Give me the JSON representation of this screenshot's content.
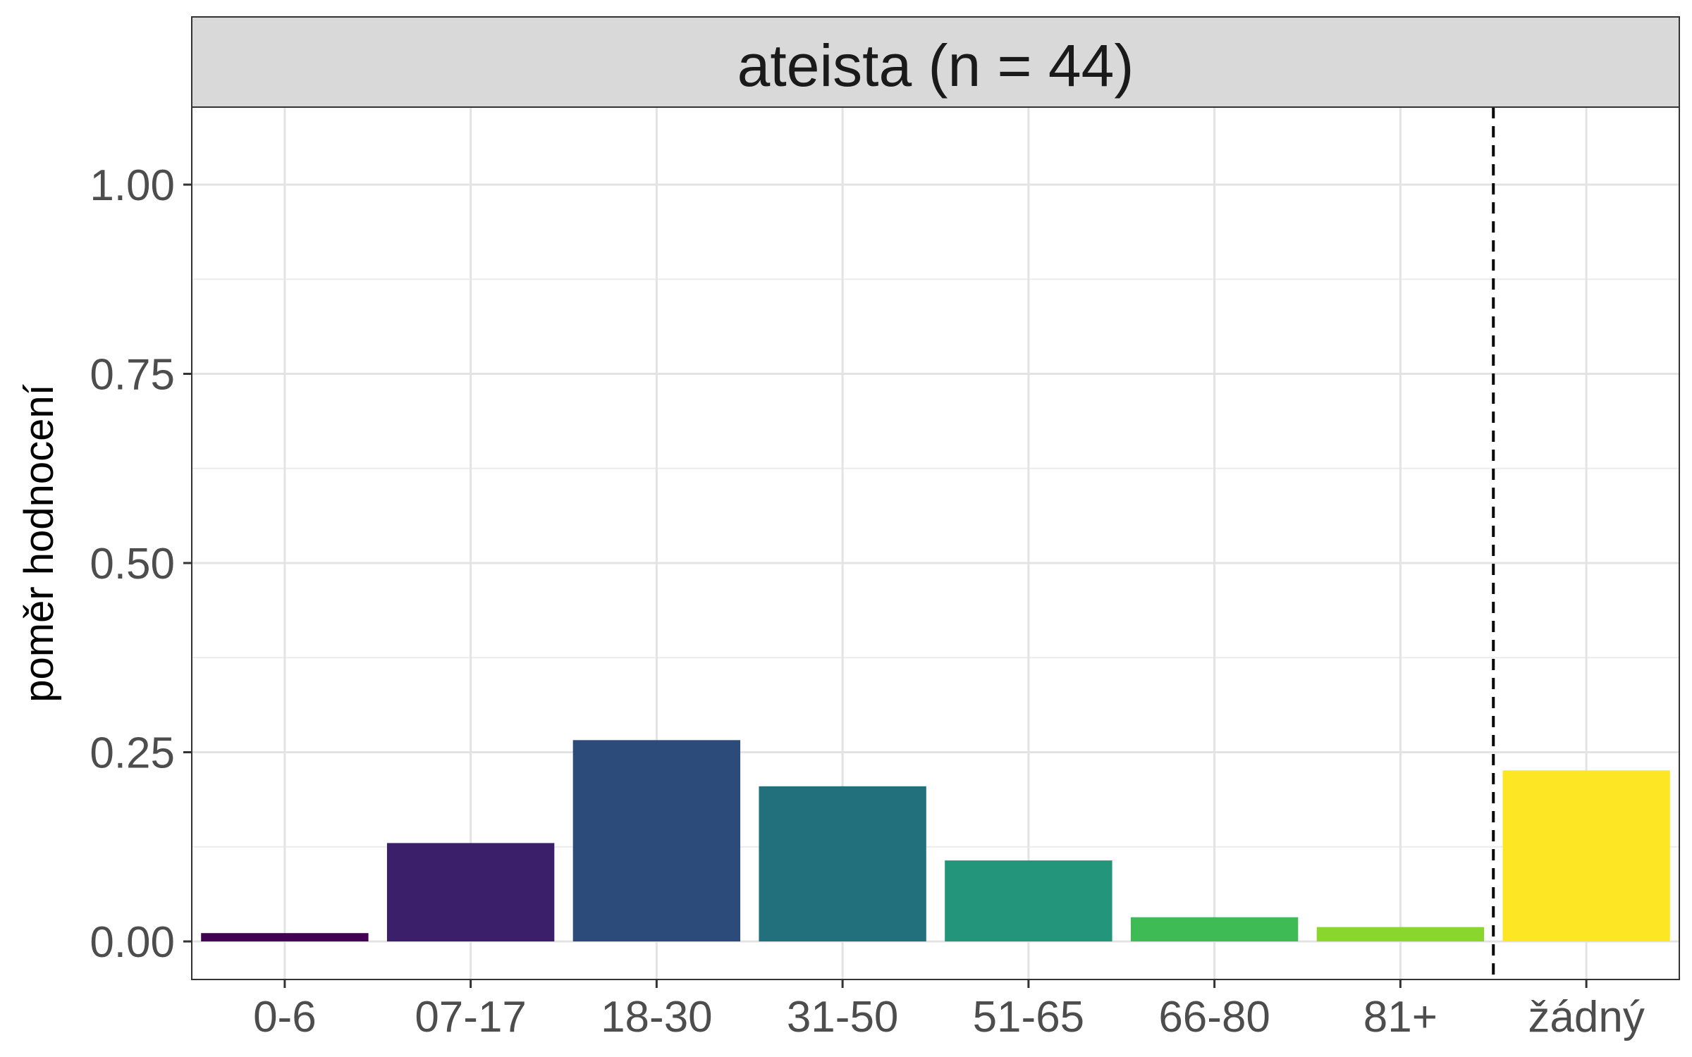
{
  "chart_data": {
    "type": "bar",
    "facet_title": "ateista (n = 44)",
    "ylabel": "poměr hodnocení",
    "xlabel": "",
    "ylim": [
      -0.05,
      1.1
    ],
    "y_ticks": [
      0.0,
      0.25,
      0.5,
      0.75,
      1.0
    ],
    "y_tick_labels": [
      "0.00",
      "0.25",
      "0.50",
      "0.75",
      "1.00"
    ],
    "grid": true,
    "legend": "none",
    "categories": [
      "0-6",
      "07-17",
      "18-30",
      "31-50",
      "51-65",
      "66-80",
      "81+",
      "žádný"
    ],
    "values": [
      0.011,
      0.13,
      0.266,
      0.205,
      0.107,
      0.032,
      0.019,
      0.226
    ],
    "colors": [
      "#440154",
      "#3b1f6a",
      "#2c4b7a",
      "#21707c",
      "#22957a",
      "#3fbb55",
      "#8ad62d",
      "#fde725"
    ],
    "reference_line": {
      "between": [
        "81+",
        "žádný"
      ],
      "style": "dashed"
    }
  }
}
